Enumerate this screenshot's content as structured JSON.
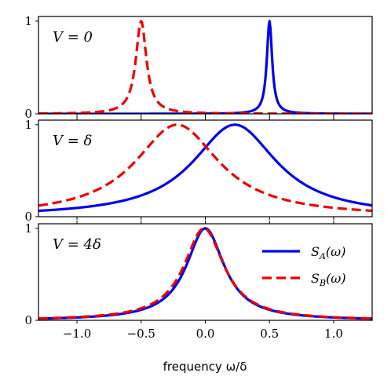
{
  "chart_data": {
    "type": "line",
    "xlabel": "frequency ω/δ",
    "xlim": [
      -1.3,
      1.3
    ],
    "xticks": [
      -1.0,
      -0.5,
      0.0,
      0.5,
      1.0
    ],
    "xtick_labels": [
      "−1.0",
      "−0.5",
      "0.0",
      "0.5",
      "1.0"
    ],
    "series_colors": {
      "A": "#0000ee",
      "B": "#ee0000"
    },
    "legend": {
      "placement": "panel-3 upper-right",
      "entries": [
        {
          "series": "A",
          "label": "S_A(ω)",
          "main": "S",
          "sub": "A",
          "suffix": "(ω)",
          "style": "solid"
        },
        {
          "series": "B",
          "label": "S_B(ω)",
          "main": "S",
          "sub": "B",
          "suffix": "(ω)",
          "style": "dashed"
        }
      ]
    },
    "panels": [
      {
        "label": "V = 0",
        "ylim": [
          0,
          1.05
        ],
        "yticks": [
          0,
          1
        ],
        "ytick_labels": [
          "0",
          "1"
        ],
        "series": [
          {
            "name": "S_A(ω)",
            "key": "A",
            "shape": "lorentzian",
            "center": 0.5,
            "hwhm": 0.025
          },
          {
            "name": "S_B(ω)",
            "key": "B",
            "shape": "lorentzian",
            "center": -0.5,
            "hwhm": 0.05
          }
        ]
      },
      {
        "label": "V = δ",
        "ylim": [
          0,
          1.05
        ],
        "yticks": [
          0,
          1
        ],
        "ytick_labels": [
          "0",
          "1"
        ],
        "series": [
          {
            "name": "S_A(ω)",
            "key": "A",
            "shape": "lorentzian",
            "center": 0.23,
            "hwhm": 0.4
          },
          {
            "name": "S_B(ω)",
            "key": "B",
            "shape": "lorentzian",
            "center": -0.22,
            "hwhm": 0.4
          }
        ]
      },
      {
        "label": "V = 4δ",
        "ylim": [
          0,
          1.05
        ],
        "yticks": [
          0,
          1
        ],
        "ytick_labels": [
          "0",
          "1"
        ],
        "series": [
          {
            "name": "S_A(ω)",
            "key": "A",
            "shape": "lorentzian",
            "center": 0.0,
            "hwhm": 0.18
          },
          {
            "name": "S_B(ω)",
            "key": "B",
            "shape": "lorentzian",
            "center": -0.01,
            "hwhm": 0.19
          }
        ]
      }
    ]
  }
}
